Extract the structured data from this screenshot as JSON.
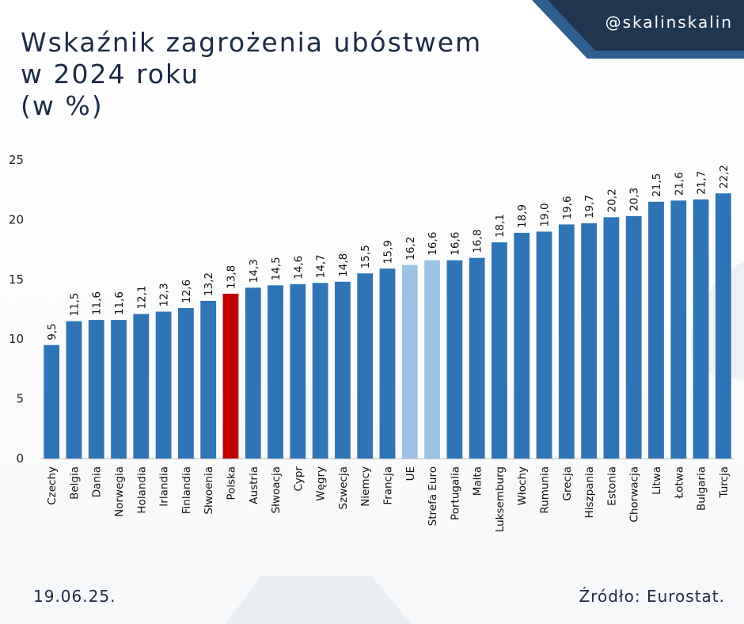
{
  "header": {
    "title_lines": [
      "Wskaźnik zagrożenia ubóstwem",
      "w 2024 roku",
      "(w %)"
    ],
    "handle": "@skalinskalin"
  },
  "footer": {
    "date": "19.06.25.",
    "source": "Źródło: Eurostat."
  },
  "colors": {
    "bar_default": "#2f75b5",
    "bar_highlight": "#c00000",
    "bar_aggregate": "#9dc3e6",
    "banner_dark": "#1f3650",
    "banner_accent": "#2e5f8f",
    "title_text": "#1d2b45"
  },
  "chart_data": {
    "type": "bar",
    "title": "Wskaźnik zagrożenia ubóstwem w 2024 roku (w %)",
    "xlabel": "",
    "ylabel": "",
    "ylim": [
      0,
      25
    ],
    "yticks": [
      0,
      5,
      10,
      15,
      20,
      25
    ],
    "grid": false,
    "legend": "none",
    "categories": [
      "Czechy",
      "Belgia",
      "Dania",
      "Norwegia",
      "Holandia",
      "Irlandia",
      "Finlandia",
      "Słwoenia",
      "Polska",
      "Austria",
      "Słwoacja",
      "Cypr",
      "Węgry",
      "Szwecja",
      "Niemcy",
      "Francja",
      "UE",
      "Strefa Euro",
      "Portugalia",
      "Malta",
      "Luksemburg",
      "Włochy",
      "Rumunia",
      "Grecja",
      "Hiszpania",
      "Estonia",
      "Chorwacja",
      "Litwa",
      "Łotwa",
      "Bulgaria",
      "Turcja"
    ],
    "values": [
      9.5,
      11.5,
      11.6,
      11.6,
      12.1,
      12.3,
      12.6,
      13.2,
      13.8,
      14.3,
      14.5,
      14.6,
      14.7,
      14.8,
      15.5,
      15.9,
      16.2,
      16.6,
      16.6,
      16.8,
      18.1,
      18.9,
      19.0,
      19.6,
      19.7,
      20.2,
      20.3,
      21.5,
      21.6,
      21.7,
      22.2
    ],
    "value_labels": [
      "9,5",
      "11,5",
      "11,6",
      "11,6",
      "12,1",
      "12,3",
      "12,6",
      "13,2",
      "13,8",
      "14,3",
      "14,5",
      "14,6",
      "14,7",
      "14,8",
      "15,5",
      "15,9",
      "16,2",
      "16,6",
      "16,6",
      "16,8",
      "18,1",
      "18,9",
      "19,0",
      "19,6",
      "19,7",
      "20,2",
      "20,3",
      "21,5",
      "21,6",
      "21,7",
      "22,2"
    ],
    "highlight": {
      "Polska": "highlight",
      "UE": "aggregate",
      "Strefa Euro": "aggregate"
    }
  }
}
